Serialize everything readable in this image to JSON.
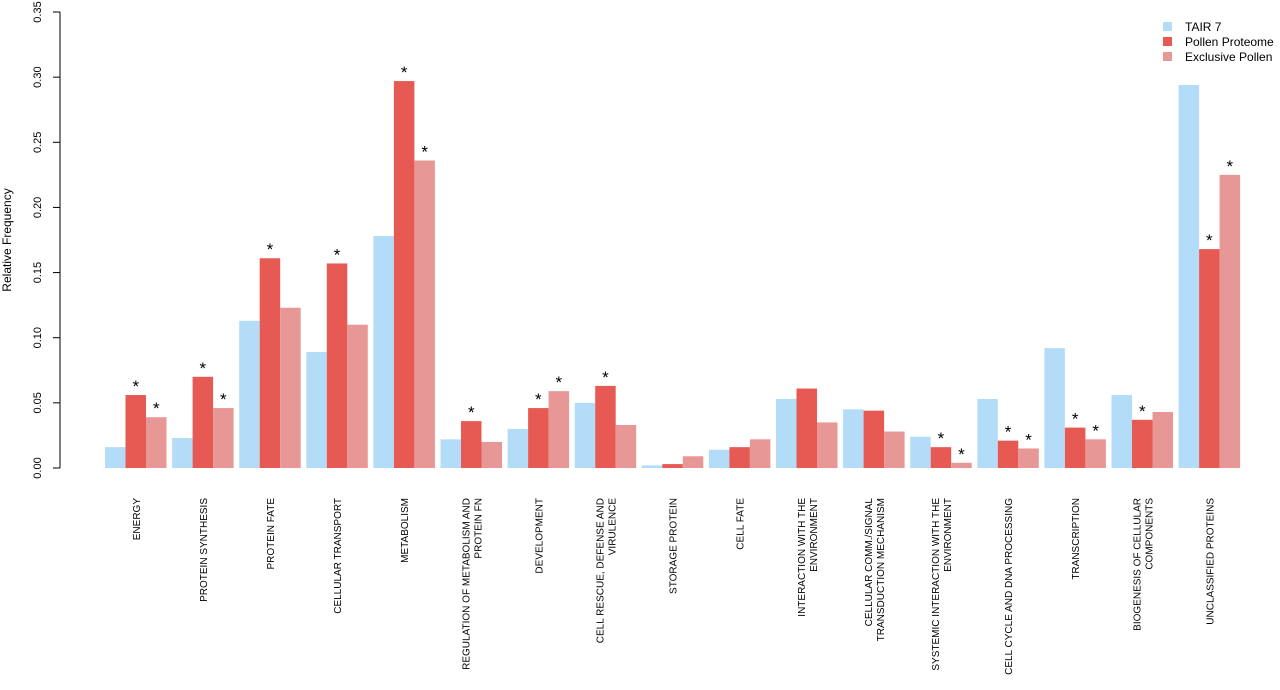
{
  "chart_data": {
    "type": "bar",
    "title": "",
    "xlabel": "",
    "ylabel": "Relative Frequency",
    "ylim": [
      0,
      0.35
    ],
    "yticks": [
      "0.00",
      "0.05",
      "0.10",
      "0.15",
      "0.20",
      "0.25",
      "0.30",
      "0.35"
    ],
    "legend_position": "top-right",
    "grid": false,
    "significance_marker": "*",
    "categories": [
      "ENERGY",
      "PROTEIN SYNTHESIS",
      "PROTEIN FATE",
      "CELLULAR TRANSPORT",
      "METABOLISM",
      "REGULATION OF METABOLISM AND PROTEIN FN",
      "DEVELOPMENT",
      "CELL RESCUE, DEFENSE AND VIRULENCE",
      "STORAGE PROTEIN",
      "CELL FATE",
      "INTERACTION WITH THE ENVIRONMENT",
      "CELLULAR COMM./SIGNAL TRANSDUCTION MECHANISM",
      "SYSTEMIC INTERACTION WITH THE ENVIRONMENT",
      "CELL CYCLE AND DNA PROCESSING",
      "TRANSCRIPTION",
      "BIOGENESIS OF CELLULAR COMPONENTS",
      "UNCLASSIFIED PROTEINS"
    ],
    "category_lines": [
      [
        "ENERGY"
      ],
      [
        "PROTEIN SYNTHESIS"
      ],
      [
        "PROTEIN FATE"
      ],
      [
        "CELLULAR TRANSPORT"
      ],
      [
        "METABOLISM"
      ],
      [
        "REGULATION OF METABOLISM AND",
        "PROTEIN FN"
      ],
      [
        "DEVELOPMENT"
      ],
      [
        "CELL RESCUE, DEFENSE AND",
        "VIRULENCE"
      ],
      [
        "STORAGE PROTEIN"
      ],
      [
        "CELL FATE"
      ],
      [
        "INTERACTION WITH THE",
        "ENVIRONMENT"
      ],
      [
        "CELLULAR COMM./SIGNAL",
        "TRANSDUCTION MECHANISM"
      ],
      [
        "SYSTEMIC INTERACTION WITH THE",
        "ENVIRONMENT"
      ],
      [
        "CELL CYCLE AND DNA PROCESSING"
      ],
      [
        "TRANSCRIPTION"
      ],
      [
        "BIOGENESIS OF CELLULAR",
        "COMPONENTS"
      ],
      [
        "UNCLASSIFIED PROTEINS"
      ]
    ],
    "series": [
      {
        "name": "TAIR 7",
        "color": "#b3dcf9",
        "values": [
          0.016,
          0.023,
          0.113,
          0.089,
          0.178,
          0.022,
          0.03,
          0.05,
          0.002,
          0.014,
          0.053,
          0.045,
          0.024,
          0.053,
          0.092,
          0.056,
          0.294
        ],
        "significant": [
          false,
          false,
          false,
          false,
          false,
          false,
          false,
          false,
          false,
          false,
          false,
          false,
          false,
          false,
          false,
          false,
          false
        ]
      },
      {
        "name": "Pollen Proteome",
        "color": "#e65a53",
        "values": [
          0.056,
          0.07,
          0.161,
          0.157,
          0.297,
          0.036,
          0.046,
          0.063,
          0.003,
          0.016,
          0.061,
          0.044,
          0.016,
          0.021,
          0.031,
          0.037,
          0.168
        ],
        "significant": [
          true,
          true,
          true,
          true,
          true,
          true,
          true,
          true,
          false,
          false,
          false,
          false,
          true,
          true,
          true,
          true,
          true
        ]
      },
      {
        "name": "Exclusive Pollen",
        "color": "#e79896",
        "values": [
          0.039,
          0.046,
          0.123,
          0.11,
          0.236,
          0.02,
          0.059,
          0.033,
          0.009,
          0.022,
          0.035,
          0.028,
          0.004,
          0.015,
          0.022,
          0.043,
          0.225
        ],
        "significant": [
          true,
          true,
          false,
          false,
          true,
          false,
          true,
          false,
          false,
          false,
          false,
          false,
          true,
          true,
          true,
          false,
          true
        ]
      }
    ]
  }
}
